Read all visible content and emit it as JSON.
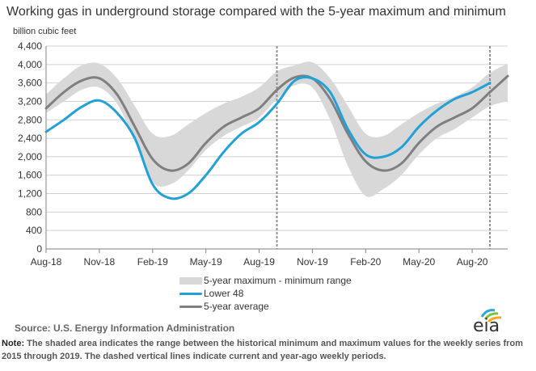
{
  "header": {
    "title": "Working gas in underground  storage compared with the 5-year maximum and minimum",
    "ylabel": "billion cubic feet"
  },
  "legend": {
    "range": "5-year maximum - minimum range",
    "lower48": "Lower 48",
    "avg": "5-year average"
  },
  "footer": {
    "source": "Source:  U.S. Energy Information Administration",
    "note_label": "Note:",
    "note_text": " The shaded area indicates the range between the historical minimum and maximum values for the weekly series from 2015 through 2019. The dashed vertical lines indicate current and year-ago weekly periods.",
    "logo_text": "eia"
  },
  "colors": {
    "range": "#d8d8d8",
    "lower48": "#22a0d8",
    "avg": "#7f7f7f",
    "grid": "#d0d0d0",
    "dashed": "#909090"
  },
  "chart_data": {
    "type": "line",
    "title": "Working gas in underground  storage compared with the 5-year maximum and minimum",
    "ylabel": "billion cubic feet",
    "xlabel": "",
    "ylim": [
      0,
      4400
    ],
    "yticks": [
      0,
      400,
      800,
      1200,
      1600,
      2000,
      2400,
      2800,
      3200,
      3600,
      4000,
      4400
    ],
    "ytick_labels": [
      "0",
      "400",
      "800",
      "1,200",
      "1,600",
      "2,000",
      "2,400",
      "2,800",
      "3,200",
      "3,600",
      "4,000",
      "4,400"
    ],
    "x_axis_range": [
      "2018-08",
      "2020-10"
    ],
    "x_ticks": [
      {
        "label": "Aug-18",
        "month": 0
      },
      {
        "label": "Nov-18",
        "month": 3
      },
      {
        "label": "Feb-19",
        "month": 6
      },
      {
        "label": "May-19",
        "month": 9
      },
      {
        "label": "Aug-19",
        "month": 12
      },
      {
        "label": "Nov-19",
        "month": 15
      },
      {
        "label": "Feb-20",
        "month": 18
      },
      {
        "label": "May-20",
        "month": 21
      },
      {
        "label": "Aug-20",
        "month": 24
      }
    ],
    "grid": true,
    "legend_position": "bottom",
    "dashed_lines": [
      "2019-09",
      "2020-09"
    ],
    "series": [
      {
        "name": "5-year maximum - minimum range",
        "kind": "band",
        "x": [
          "2018-08",
          "2018-09",
          "2018-10",
          "2018-11",
          "2018-12",
          "2019-01",
          "2019-02",
          "2019-03",
          "2019-04",
          "2019-05",
          "2019-06",
          "2019-07",
          "2019-08",
          "2019-09",
          "2019-10",
          "2019-11",
          "2019-12",
          "2020-01",
          "2020-02",
          "2020-03",
          "2020-04",
          "2020-05",
          "2020-06",
          "2020-07",
          "2020-08",
          "2020-09",
          "2020-10"
        ],
        "upper": [
          3350,
          3700,
          3980,
          4020,
          3700,
          3100,
          2500,
          2450,
          2700,
          2950,
          3150,
          3300,
          3500,
          3850,
          3980,
          4050,
          3700,
          3100,
          2500,
          2450,
          2700,
          2950,
          3150,
          3300,
          3500,
          3820,
          4020
        ],
        "lower": [
          2950,
          3200,
          3450,
          3500,
          3150,
          2350,
          1450,
          1400,
          1700,
          2150,
          2450,
          2650,
          2850,
          3250,
          3550,
          3500,
          2800,
          1800,
          1150,
          1300,
          1600,
          2050,
          2400,
          2600,
          2850,
          3100,
          3200
        ]
      },
      {
        "name": "Lower 48",
        "x": [
          "2018-08",
          "2018-09",
          "2018-10",
          "2018-11",
          "2018-12",
          "2019-01",
          "2019-02",
          "2019-03",
          "2019-04",
          "2019-05",
          "2019-06",
          "2019-07",
          "2019-08",
          "2019-09",
          "2019-10",
          "2019-11",
          "2019-12",
          "2020-01",
          "2020-02",
          "2020-03",
          "2020-04",
          "2020-05",
          "2020-06",
          "2020-07",
          "2020-08",
          "2020-09"
        ],
        "values": [
          2540,
          2800,
          3080,
          3220,
          2950,
          2400,
          1400,
          1100,
          1200,
          1600,
          2100,
          2500,
          2750,
          3150,
          3650,
          3700,
          3400,
          2600,
          2050,
          2000,
          2200,
          2650,
          3000,
          3250,
          3400,
          3600
        ]
      },
      {
        "name": "5-year average",
        "x": [
          "2018-08",
          "2018-09",
          "2018-10",
          "2018-11",
          "2018-12",
          "2019-01",
          "2019-02",
          "2019-03",
          "2019-04",
          "2019-05",
          "2019-06",
          "2019-07",
          "2019-08",
          "2019-09",
          "2019-10",
          "2019-11",
          "2019-12",
          "2020-01",
          "2020-02",
          "2020-03",
          "2020-04",
          "2020-05",
          "2020-06",
          "2020-07",
          "2020-08",
          "2020-09",
          "2020-10"
        ],
        "values": [
          3050,
          3400,
          3650,
          3700,
          3350,
          2650,
          1950,
          1700,
          1850,
          2300,
          2650,
          2850,
          3050,
          3450,
          3720,
          3700,
          3250,
          2500,
          1900,
          1700,
          1850,
          2300,
          2650,
          2850,
          3050,
          3400,
          3750
        ]
      }
    ]
  }
}
